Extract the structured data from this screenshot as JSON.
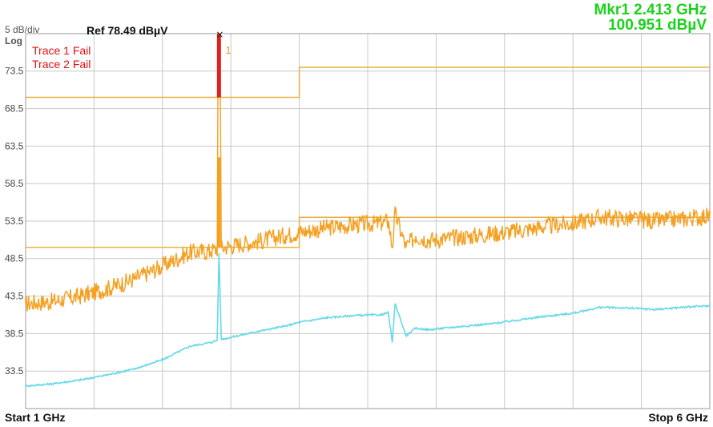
{
  "header": {
    "scale": "5 dB/div",
    "log": "Log",
    "ref": "Ref 78.49 dBµV",
    "marker_line1": "Mkr1  2.413 GHz",
    "marker_line2": "100.951 dBµV"
  },
  "status": {
    "trace1": "Trace 1 Fail",
    "trace2": "Trace 2 Fail"
  },
  "footer": {
    "start": "Start 1 GHz",
    "stop": "Stop 6 GHz"
  },
  "colors": {
    "peak_trace": "#f5a020",
    "avg_trace": "#66d9e8",
    "limit_line": "#e8b040",
    "grid": "#c8c8c8",
    "fail_text": "#e01010",
    "marker_text": "#19d219",
    "spike": "#e02020"
  },
  "chart_data": {
    "type": "line",
    "x_unit": "GHz",
    "y_unit": "dBµV",
    "xlim": [
      1,
      6
    ],
    "ylim": [
      28.49,
      78.49
    ],
    "y_ticks": [
      73.5,
      68.5,
      63.5,
      58.5,
      53.5,
      48.5,
      43.5,
      38.5,
      33.5
    ],
    "y_tick_labels": [
      "73.5",
      "68.5",
      "63.5",
      "58.5",
      "53.5",
      "48.5",
      "43.5",
      "38.5",
      "33.5"
    ],
    "grid": true,
    "marker": {
      "label": "1",
      "x": 2.413,
      "y": 100.951
    },
    "limit_lines": [
      {
        "name": "peak-limit",
        "x": [
          1,
          3.0,
          3.0,
          6
        ],
        "y": [
          70.0,
          70.0,
          74.0,
          74.0
        ]
      },
      {
        "name": "average-limit",
        "x": [
          1,
          3.0,
          3.0,
          6
        ],
        "y": [
          50.0,
          50.0,
          54.0,
          54.0
        ]
      }
    ],
    "series": [
      {
        "x": [
          1.0,
          1.2,
          1.4,
          1.6,
          1.8,
          2.0,
          2.2,
          2.35,
          2.4,
          2.413,
          2.43,
          2.5,
          2.7,
          2.9,
          3.0,
          3.2,
          3.4,
          3.6,
          3.65,
          3.68,
          3.7,
          3.78,
          3.85,
          3.95,
          4.1,
          4.4,
          4.6,
          4.8,
          5.0,
          5.2,
          5.4,
          5.6,
          5.8,
          6.0
        ],
        "y": [
          42.5,
          42.8,
          43.5,
          44.5,
          45.8,
          47.5,
          49.3,
          49.5,
          49.8,
          101.0,
          49.9,
          50.2,
          50.8,
          51.6,
          52.0,
          52.6,
          53.0,
          53.2,
          53.5,
          50.0,
          54.5,
          50.0,
          51.5,
          51.0,
          51.2,
          51.8,
          52.2,
          52.8,
          53.2,
          54.0,
          53.8,
          53.5,
          53.8,
          54.2
        ]
      },
      {
        "x": [
          1.0,
          1.2,
          1.4,
          1.6,
          1.8,
          2.0,
          2.2,
          2.35,
          2.4,
          2.413,
          2.43,
          2.5,
          2.7,
          2.9,
          3.0,
          3.2,
          3.4,
          3.6,
          3.65,
          3.68,
          3.7,
          3.78,
          3.85,
          3.95,
          4.1,
          4.4,
          4.6,
          4.8,
          5.0,
          5.2,
          5.4,
          5.6,
          5.8,
          6.0
        ],
        "y": [
          31.5,
          31.8,
          32.3,
          33.0,
          33.8,
          35.0,
          36.8,
          37.3,
          37.6,
          49.2,
          37.7,
          38.0,
          38.8,
          39.5,
          40.0,
          40.6,
          40.9,
          41.0,
          41.3,
          37.3,
          42.5,
          38.2,
          39.2,
          39.0,
          39.3,
          39.8,
          40.3,
          40.8,
          41.2,
          42.0,
          41.9,
          41.7,
          42.0,
          42.2
        ]
      }
    ]
  }
}
